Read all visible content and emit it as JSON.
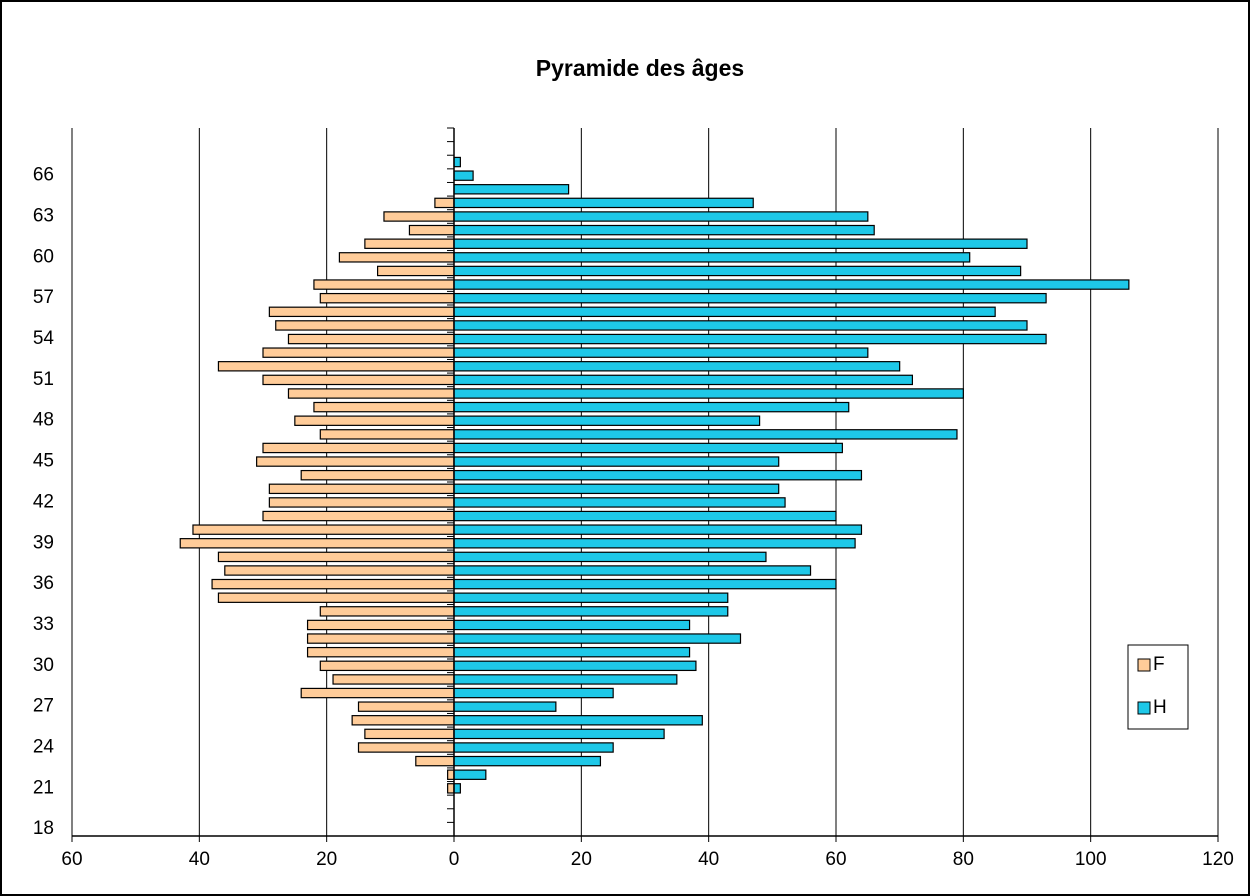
{
  "chart_data": {
    "type": "bar",
    "orientation": "horizontal",
    "title": "Pyramide des âges",
    "categories": [
      "18",
      null,
      null,
      "21",
      null,
      null,
      "24",
      null,
      null,
      "27",
      null,
      null,
      "30",
      null,
      null,
      "33",
      null,
      null,
      "36",
      null,
      null,
      "39",
      null,
      null,
      "42",
      null,
      null,
      "45",
      null,
      null,
      "48",
      null,
      null,
      "51",
      null,
      null,
      "54",
      null,
      null,
      "57",
      null,
      null,
      "60",
      null,
      null,
      "63",
      null,
      null,
      "66",
      null,
      null,
      null
    ],
    "series": [
      {
        "name": "F",
        "color": "#ffcc99",
        "values": [
          0,
          0,
          0,
          -1,
          -1,
          -6,
          -15,
          -14,
          -16,
          -15,
          -24,
          -19,
          -21,
          -23,
          -23,
          -23,
          -21,
          -37,
          -38,
          -36,
          -37,
          -43,
          -41,
          -30,
          -29,
          -29,
          -24,
          -31,
          -30,
          -21,
          -25,
          -22,
          -26,
          -30,
          -37,
          -30,
          -26,
          -28,
          -29,
          -21,
          -22,
          -12,
          -18,
          -14,
          -7,
          -11,
          -3,
          0,
          0,
          0,
          0,
          0
        ]
      },
      {
        "name": "H",
        "color": "#1ec8e8",
        "values": [
          0,
          0,
          0,
          1,
          5,
          23,
          25,
          33,
          39,
          16,
          25,
          35,
          38,
          37,
          45,
          37,
          43,
          43,
          60,
          56,
          49,
          63,
          64,
          60,
          52,
          51,
          64,
          51,
          61,
          79,
          48,
          62,
          80,
          72,
          70,
          65,
          93,
          90,
          85,
          93,
          106,
          89,
          81,
          90,
          66,
          65,
          47,
          18,
          3,
          1,
          0,
          0
        ]
      }
    ],
    "xlim": [
      -60,
      120
    ],
    "xticks": [
      {
        "value": -60,
        "label": "60"
      },
      {
        "value": -40,
        "label": "40"
      },
      {
        "value": -20,
        "label": "20"
      },
      0,
      20,
      40,
      60,
      80,
      100,
      120
    ],
    "grid": true,
    "legend": "right"
  }
}
